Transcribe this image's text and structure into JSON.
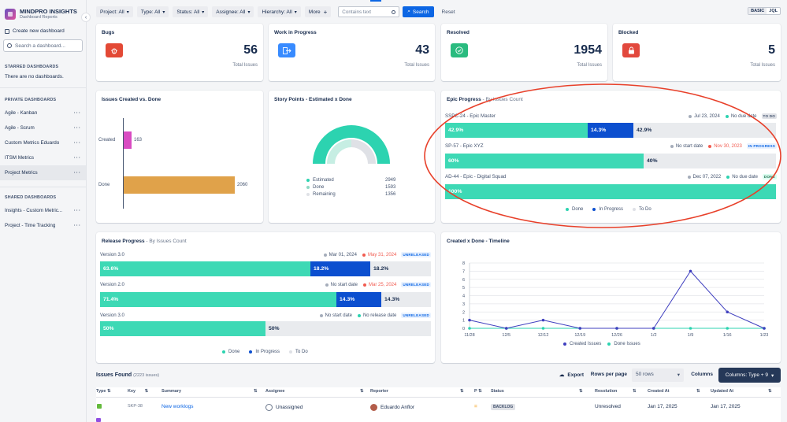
{
  "brand": {
    "title": "MINDPRO INSIGHTS",
    "subtitle": "Dashboard Reports"
  },
  "sidebar": {
    "create_label": "Create new dashboard",
    "search_placeholder": "Search a dashboard...",
    "starred_header": "STARRED DASHBOARDS",
    "starred_empty": "There are no dashboards.",
    "private_header": "PRIVATE DASHBOARDS",
    "private_items": [
      "Agile - Kanban",
      "Agile - Scrum",
      "Custom Metrics Eduardo",
      "ITSM Metrics",
      "Project Metrics"
    ],
    "shared_header": "SHARED DASHBOARDS",
    "shared_items": [
      "Insights - Custom Metric...",
      "Project - Time Tracking"
    ]
  },
  "filters": {
    "items": [
      "Project: All",
      "Type: All",
      "Status: All",
      "Assignee: All",
      "Hierarchy: All",
      "More"
    ],
    "search_placeholder": "Contains text",
    "search_button": "Search",
    "reset": "Reset",
    "mode_basic": "BASIC",
    "mode_jql": "JQL"
  },
  "kpis": [
    {
      "title": "Bugs",
      "value": "56",
      "sub": "Total Issues",
      "color": "#e34935",
      "icon": "bug-icon"
    },
    {
      "title": "Work in Progress",
      "value": "43",
      "sub": "Total Issues",
      "color": "#388bff",
      "icon": "arrow-right-icon"
    },
    {
      "title": "Resolved",
      "value": "1954",
      "sub": "Total Issues",
      "color": "#2abb7f",
      "icon": "check-circle-icon"
    },
    {
      "title": "Blocked",
      "value": "5",
      "sub": "Total Issues",
      "color": "#e2483d",
      "icon": "lock-icon"
    }
  ],
  "created_vs_done": {
    "title": "Issues Created vs. Done",
    "labels": [
      "Created",
      "Done"
    ],
    "values": [
      "163",
      "2060"
    ]
  },
  "story_points": {
    "title": "Story Points - Estimated x Done",
    "legend": [
      {
        "label": "Estimated",
        "value": "2949",
        "color": "#2cd3b0"
      },
      {
        "label": "Done",
        "value": "1593",
        "color": "#8fd8c4"
      },
      {
        "label": "Remaining",
        "value": "1356",
        "color": "#dfe1e6"
      }
    ]
  },
  "epic_progress": {
    "title": "Epic Progress",
    "subtitle": "- By Issues Count",
    "rows": [
      {
        "name": "SSPC-24 - Epic Master",
        "start": "Jul 23, 2024",
        "due": "No due date",
        "status": "TO DO",
        "done": "42.9%",
        "progress": "14.3%",
        "todo": "42.9%"
      },
      {
        "name": "SP-57 - Epic XYZ",
        "start": "No start date",
        "due": "Nov 30, 2023",
        "status": "IN PROGRESS",
        "done": "60%",
        "progress": "",
        "todo": "40%"
      },
      {
        "name": "AD-44 - Epic - Digital Squad",
        "start": "Dec 07, 2022",
        "due": "No due date",
        "status": "DONE",
        "done": "100%",
        "progress": "",
        "todo": ""
      }
    ],
    "legend": [
      "Done",
      "In Progress",
      "To Do"
    ]
  },
  "release_progress": {
    "title": "Release Progress",
    "subtitle": "- By Issues Count",
    "rows": [
      {
        "name": "Version 3.0",
        "start": "Mar 01, 2024",
        "release": "May 31, 2024",
        "status": "UNRELEASED",
        "done": "63.6%",
        "progress": "18.2%",
        "todo": "18.2%"
      },
      {
        "name": "Version 2.0",
        "start": "No start date",
        "release": "Mar 25, 2024",
        "status": "UNRELEASED",
        "done": "71.4%",
        "progress": "14.3%",
        "todo": "14.3%"
      },
      {
        "name": "Version 3.0",
        "start": "No start date",
        "release": "No release date",
        "status": "UNRELEASED",
        "done": "50%",
        "progress": "",
        "todo": "50%"
      }
    ],
    "legend": [
      "Done",
      "In Progress",
      "To Do"
    ]
  },
  "chart_data": {
    "type": "line",
    "title": "Created x Done - Timeline",
    "x": [
      "11/28",
      "12/5",
      "12/12",
      "12/19",
      "12/26",
      "1/2",
      "1/9",
      "1/16",
      "1/23"
    ],
    "series": [
      {
        "name": "Created Issues",
        "values": [
          1,
          0,
          1,
          0,
          0,
          0,
          7,
          2,
          0
        ],
        "color": "#3f3fbf"
      },
      {
        "name": "Done Issues",
        "values": [
          0,
          0,
          0,
          0,
          0,
          0,
          0,
          0,
          0
        ],
        "color": "#2cd3b0"
      }
    ],
    "ylim": [
      0,
      8
    ],
    "yticks": [
      "0",
      "1",
      "2",
      "3",
      "4",
      "5",
      "6",
      "7",
      "8"
    ],
    "grid": true,
    "legend": "bottom"
  },
  "issues": {
    "title": "Issues Found",
    "count": "(2223 issues)",
    "export": "Export",
    "rows_per_page_label": "Rows per page",
    "rows_per_page": "50 rows",
    "columns_label": "Columns",
    "columns_button": "Columns: Type + 9",
    "headers": [
      "Type",
      "Key",
      "Summary",
      "Assignee",
      "Reporter",
      "P",
      "Status",
      "Resolution",
      "Created At",
      "Updated At"
    ],
    "row": {
      "key": "SKP-38",
      "summary": "New worklogs",
      "assignee": "Unassigned",
      "reporter": "Eduardo Anflor",
      "status": "BACKLOG",
      "resolution": "Unresolved",
      "created": "Jan 17, 2025",
      "updated": "Jan 17, 2025"
    }
  }
}
